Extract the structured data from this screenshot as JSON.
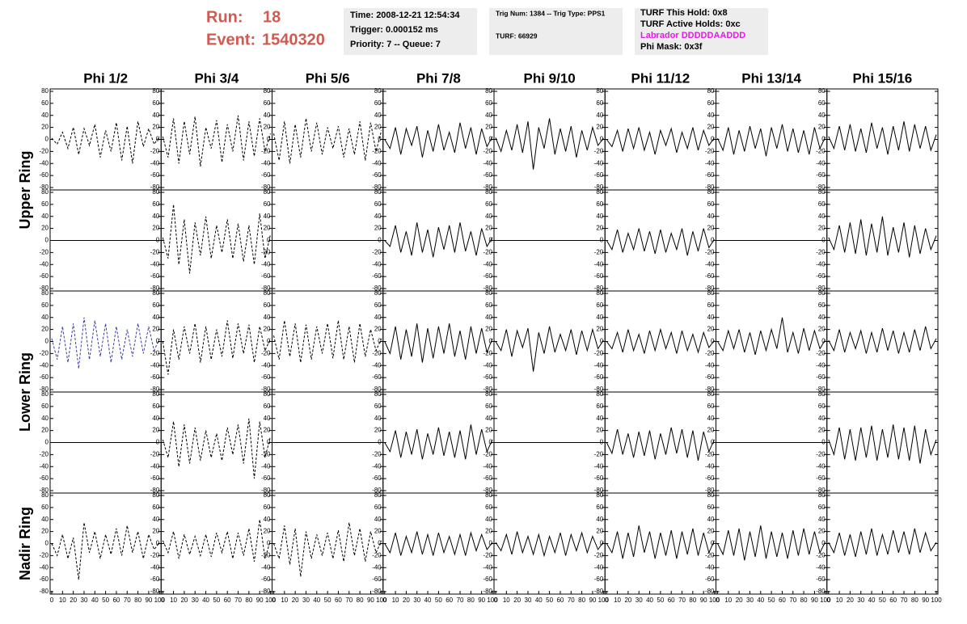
{
  "header": {
    "run_label": "Run:",
    "run": "18",
    "event_label": "Event:",
    "event": "1540320",
    "box1": [
      "Time: 2008-12-21 12:54:34",
      "Trigger: 0.000152 ms",
      "Priority: 7 -- Queue: 7"
    ],
    "box2": [
      "Trig Num: 1384 -- Trig Type: PPS1",
      "TURF: 66929"
    ],
    "box3": [
      "TURF This Hold: 0x8",
      "TURF Active Holds: 0xc",
      "Labrador DDDDDAADDD",
      "Phi Mask: 0x3f"
    ]
  },
  "chart_data": {
    "type": "line",
    "columns": [
      "Phi 1/2",
      "Phi 3/4",
      "Phi 5/6",
      "Phi 7/8",
      "Phi 9/10",
      "Phi 11/12",
      "Phi 13/14",
      "Phi 15/16"
    ],
    "rings": [
      "Upper Ring",
      "Lower Ring",
      "Nadir Ring"
    ],
    "x": [
      0,
      5,
      10,
      15,
      20,
      25,
      30,
      35,
      40,
      45,
      50,
      55,
      60,
      65,
      70,
      75,
      80,
      85,
      90,
      95,
      100
    ],
    "xlim": [
      0,
      100
    ],
    "xticks": [
      0,
      10,
      20,
      30,
      40,
      50,
      60,
      70,
      80,
      90,
      100
    ],
    "ylim": [
      -80,
      80
    ],
    "yticks": [
      -80,
      -60,
      -40,
      -20,
      0,
      20,
      40,
      60,
      80
    ],
    "grid": false,
    "panels": [
      [
        {
          "color": "#000000",
          "dashed": true,
          "values": [
            2,
            -8,
            12,
            -15,
            20,
            -25,
            18,
            -10,
            25,
            -30,
            15,
            -20,
            28,
            -35,
            22,
            -40,
            30,
            -12,
            18,
            -8,
            5
          ]
        },
        {
          "color": "#000000",
          "dashed": true,
          "values": [
            5,
            -30,
            35,
            -40,
            30,
            -25,
            38,
            -45,
            20,
            -15,
            32,
            -38,
            25,
            -20,
            40,
            -35,
            30,
            -28,
            35,
            -20,
            10
          ]
        },
        {
          "color": "#000000",
          "dashed": true,
          "values": [
            10,
            -35,
            30,
            -40,
            25,
            -30,
            35,
            -20,
            28,
            -25,
            20,
            -15,
            22,
            -30,
            18,
            -25,
            30,
            -35,
            28,
            -20,
            15
          ]
        },
        {
          "color": "#000000",
          "dashed": false,
          "values": [
            0,
            -15,
            20,
            -25,
            18,
            -10,
            22,
            -30,
            15,
            -20,
            25,
            -18,
            12,
            -22,
            28,
            -15,
            20,
            -25,
            18,
            -12,
            5
          ]
        },
        {
          "color": "#000000",
          "dashed": false,
          "values": [
            3,
            -20,
            15,
            -18,
            25,
            -22,
            30,
            -50,
            20,
            -15,
            35,
            -25,
            18,
            -20,
            22,
            -30,
            15,
            -18,
            20,
            -10,
            2
          ]
        },
        {
          "color": "#000000",
          "dashed": false,
          "values": [
            0,
            -12,
            15,
            -20,
            18,
            -15,
            20,
            -18,
            12,
            -25,
            15,
            -10,
            18,
            -22,
            12,
            -15,
            20,
            -18,
            15,
            -10,
            3
          ]
        },
        {
          "color": "#000000",
          "dashed": false,
          "values": [
            2,
            -18,
            20,
            -25,
            15,
            -20,
            22,
            -15,
            18,
            -28,
            20,
            -15,
            25,
            -20,
            18,
            -22,
            15,
            -25,
            20,
            -15,
            4
          ]
        },
        {
          "color": "#000000",
          "dashed": false,
          "values": [
            5,
            -15,
            22,
            -18,
            25,
            -20,
            18,
            -22,
            28,
            -15,
            20,
            -25,
            22,
            -18,
            30,
            -20,
            25,
            -15,
            22,
            -18,
            8
          ]
        }
      ],
      [
        null,
        {
          "color": "#000000",
          "dashed": true,
          "values": [
            5,
            -30,
            60,
            -40,
            35,
            -55,
            30,
            -25,
            40,
            -30,
            25,
            -20,
            35,
            -30,
            28,
            -35,
            25,
            -40,
            45,
            -30,
            10
          ]
        },
        null,
        {
          "color": "#000000",
          "dashed": false,
          "values": [
            0,
            -10,
            25,
            -20,
            15,
            -25,
            30,
            -20,
            18,
            -28,
            22,
            -15,
            25,
            -20,
            30,
            -18,
            15,
            -25,
            20,
            -10,
            5
          ]
        },
        null,
        {
          "color": "#000000",
          "dashed": false,
          "values": [
            0,
            -15,
            18,
            -20,
            12,
            -15,
            20,
            -18,
            15,
            -22,
            18,
            -20,
            12,
            -15,
            20,
            -25,
            15,
            -18,
            20,
            -12,
            2
          ]
        },
        null,
        {
          "color": "#000000",
          "dashed": false,
          "values": [
            5,
            -15,
            25,
            -20,
            30,
            -22,
            35,
            -25,
            28,
            -20,
            40,
            -25,
            22,
            -20,
            30,
            -28,
            25,
            -22,
            20,
            -15,
            8
          ]
        }
      ],
      [
        {
          "color": "#3a3aa0",
          "dashed": true,
          "values": [
            5,
            -30,
            25,
            -35,
            30,
            -45,
            40,
            -30,
            35,
            -25,
            30,
            -35,
            25,
            -30,
            20,
            -25,
            30,
            -20,
            25,
            -15,
            5
          ]
        },
        {
          "color": "#000000",
          "dashed": true,
          "values": [
            0,
            -55,
            20,
            -30,
            25,
            -20,
            30,
            -35,
            25,
            -30,
            20,
            -25,
            35,
            -28,
            30,
            -20,
            28,
            -35,
            25,
            -15,
            5
          ]
        },
        {
          "color": "#000000",
          "dashed": true,
          "values": [
            10,
            -30,
            35,
            -25,
            30,
            -35,
            28,
            -30,
            25,
            -20,
            30,
            -28,
            35,
            -30,
            25,
            -35,
            30,
            -25,
            20,
            -15,
            5
          ]
        },
        {
          "color": "#000000",
          "dashed": false,
          "values": [
            0,
            -20,
            25,
            -30,
            20,
            -25,
            30,
            -35,
            22,
            -28,
            25,
            -20,
            30,
            -25,
            18,
            -30,
            25,
            -20,
            22,
            -18,
            5
          ]
        },
        {
          "color": "#000000",
          "dashed": false,
          "values": [
            0,
            -15,
            20,
            -25,
            18,
            -10,
            22,
            -50,
            15,
            -20,
            25,
            -18,
            12,
            -15,
            20,
            -22,
            18,
            -15,
            20,
            -12,
            2
          ]
        },
        {
          "color": "#000000",
          "dashed": false,
          "values": [
            0,
            -12,
            15,
            -18,
            20,
            -15,
            12,
            -20,
            18,
            -15,
            20,
            -12,
            15,
            -20,
            18,
            -15,
            12,
            -18,
            15,
            -10,
            2
          ]
        },
        {
          "color": "#000000",
          "dashed": false,
          "values": [
            0,
            -15,
            18,
            -12,
            20,
            -18,
            15,
            -22,
            18,
            -15,
            20,
            -12,
            40,
            -18,
            15,
            -20,
            22,
            -15,
            18,
            -12,
            3
          ]
        },
        {
          "color": "#000000",
          "dashed": false,
          "values": [
            2,
            -15,
            20,
            -18,
            15,
            -12,
            18,
            -20,
            15,
            -18,
            22,
            -15,
            18,
            -20,
            15,
            -18,
            20,
            -15,
            25,
            -12,
            5
          ]
        }
      ],
      [
        null,
        {
          "color": "#000000",
          "dashed": true,
          "values": [
            5,
            -25,
            35,
            -40,
            30,
            -35,
            25,
            -30,
            20,
            -25,
            15,
            -30,
            25,
            -20,
            30,
            -35,
            40,
            -60,
            35,
            -25,
            10
          ]
        },
        null,
        {
          "color": "#000000",
          "dashed": false,
          "values": [
            0,
            -15,
            20,
            -25,
            18,
            -20,
            22,
            -28,
            15,
            -20,
            25,
            -22,
            18,
            -25,
            20,
            -28,
            30,
            -20,
            22,
            -15,
            5
          ]
        },
        null,
        {
          "color": "#000000",
          "dashed": false,
          "values": [
            0,
            -18,
            22,
            -20,
            15,
            -25,
            18,
            -22,
            20,
            -28,
            15,
            -20,
            25,
            -18,
            22,
            -25,
            20,
            -30,
            18,
            -15,
            5
          ]
        },
        null,
        {
          "color": "#000000",
          "dashed": false,
          "values": [
            5,
            -20,
            25,
            -28,
            22,
            -30,
            25,
            -25,
            28,
            -30,
            22,
            -25,
            30,
            -28,
            25,
            -30,
            28,
            -35,
            22,
            -20,
            5
          ]
        }
      ],
      [
        {
          "color": "#000000",
          "dashed": true,
          "values": [
            0,
            -20,
            15,
            -25,
            10,
            -60,
            35,
            -15,
            20,
            -25,
            15,
            -18,
            25,
            -20,
            30,
            -15,
            20,
            -25,
            15,
            -10,
            2
          ]
        },
        {
          "color": "#000000",
          "dashed": true,
          "values": [
            5,
            -15,
            20,
            -25,
            15,
            -18,
            12,
            -20,
            15,
            -22,
            18,
            -15,
            20,
            -25,
            18,
            -20,
            25,
            -30,
            40,
            -25,
            5
          ]
        },
        {
          "color": "#000000",
          "dashed": true,
          "values": [
            0,
            -25,
            30,
            -35,
            25,
            -55,
            20,
            -25,
            15,
            -20,
            18,
            -25,
            22,
            -30,
            35,
            -20,
            25,
            -30,
            20,
            -15,
            5
          ]
        },
        {
          "color": "#000000",
          "dashed": false,
          "values": [
            0,
            -15,
            18,
            -20,
            12,
            -15,
            20,
            -18,
            15,
            -20,
            18,
            -15,
            12,
            -18,
            15,
            -20,
            18,
            -12,
            15,
            -10,
            2
          ]
        },
        {
          "color": "#000000",
          "dashed": false,
          "values": [
            2,
            -12,
            15,
            -18,
            20,
            -15,
            12,
            -18,
            15,
            -20,
            12,
            -15,
            18,
            -20,
            15,
            -12,
            18,
            -15,
            12,
            -10,
            3
          ]
        },
        {
          "color": "#000000",
          "dashed": false,
          "values": [
            0,
            -15,
            20,
            -25,
            18,
            -22,
            30,
            -15,
            20,
            -25,
            18,
            -20,
            22,
            -25,
            20,
            -18,
            25,
            -20,
            18,
            -15,
            5
          ]
        },
        {
          "color": "#000000",
          "dashed": false,
          "values": [
            0,
            -18,
            22,
            -20,
            25,
            -28,
            20,
            -22,
            30,
            -25,
            20,
            -22,
            18,
            -25,
            22,
            -20,
            25,
            -18,
            20,
            -15,
            3
          ]
        },
        {
          "color": "#000000",
          "dashed": false,
          "values": [
            2,
            -15,
            18,
            -20,
            15,
            -22,
            20,
            -18,
            25,
            -20,
            15,
            -18,
            22,
            -15,
            20,
            -18,
            25,
            -15,
            18,
            -12,
            2
          ]
        }
      ]
    ]
  }
}
